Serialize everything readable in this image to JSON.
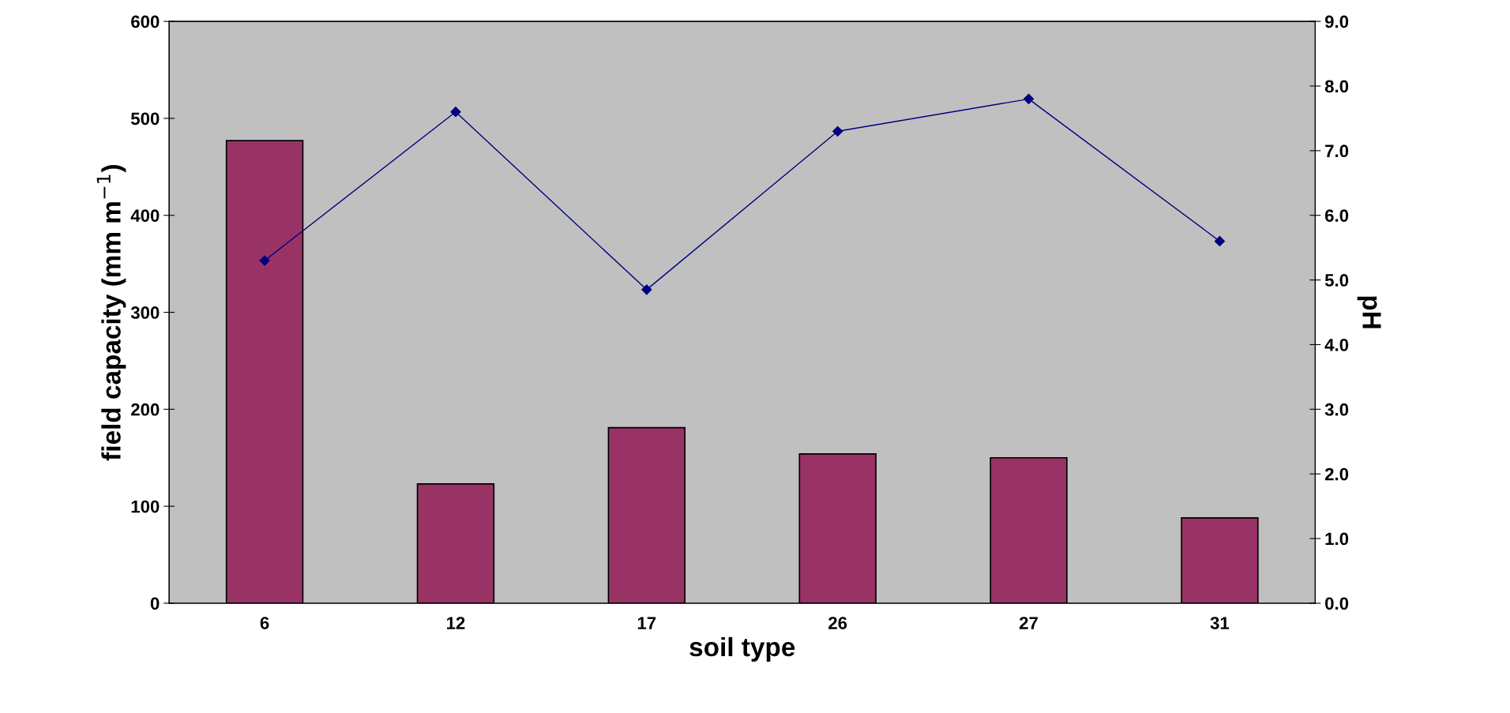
{
  "chart_data": {
    "type": "bar",
    "xlabel": "soil type",
    "ylabel": "field capacity (mm m$^{−1}$)",
    "y2label": "pH",
    "categories": [
      "6",
      "12",
      "17",
      "26",
      "27",
      "31"
    ],
    "series": [
      {
        "color": "#993366",
        "values": [
          477,
          123,
          181,
          154,
          150,
          88
        ]
      },
      {
        "type": "line",
        "axis": "y2",
        "color": "#000080",
        "marker": "diamond",
        "values": [
          5.3,
          7.6,
          4.85,
          7.3,
          7.8,
          5.6
        ]
      }
    ],
    "ylim": [
      0,
      600
    ],
    "yticks": [
      0,
      100,
      200,
      300,
      400,
      500,
      600
    ],
    "y2lim": [
      0,
      9
    ],
    "y2ticks": [
      {
        "value": 0,
        "label": "0.0"
      },
      {
        "value": 1,
        "label": "1.0"
      },
      {
        "value": 2,
        "label": "2.0"
      },
      {
        "value": 3,
        "label": "3.0"
      },
      {
        "value": 4,
        "label": "4.0"
      },
      {
        "value": 5,
        "label": "5.0"
      },
      {
        "value": 6,
        "label": "6.0"
      },
      {
        "value": 7,
        "label": "7.0"
      },
      {
        "value": 8,
        "label": "8.0"
      },
      {
        "value": 9,
        "label": "9.0"
      }
    ],
    "grid": false
  }
}
